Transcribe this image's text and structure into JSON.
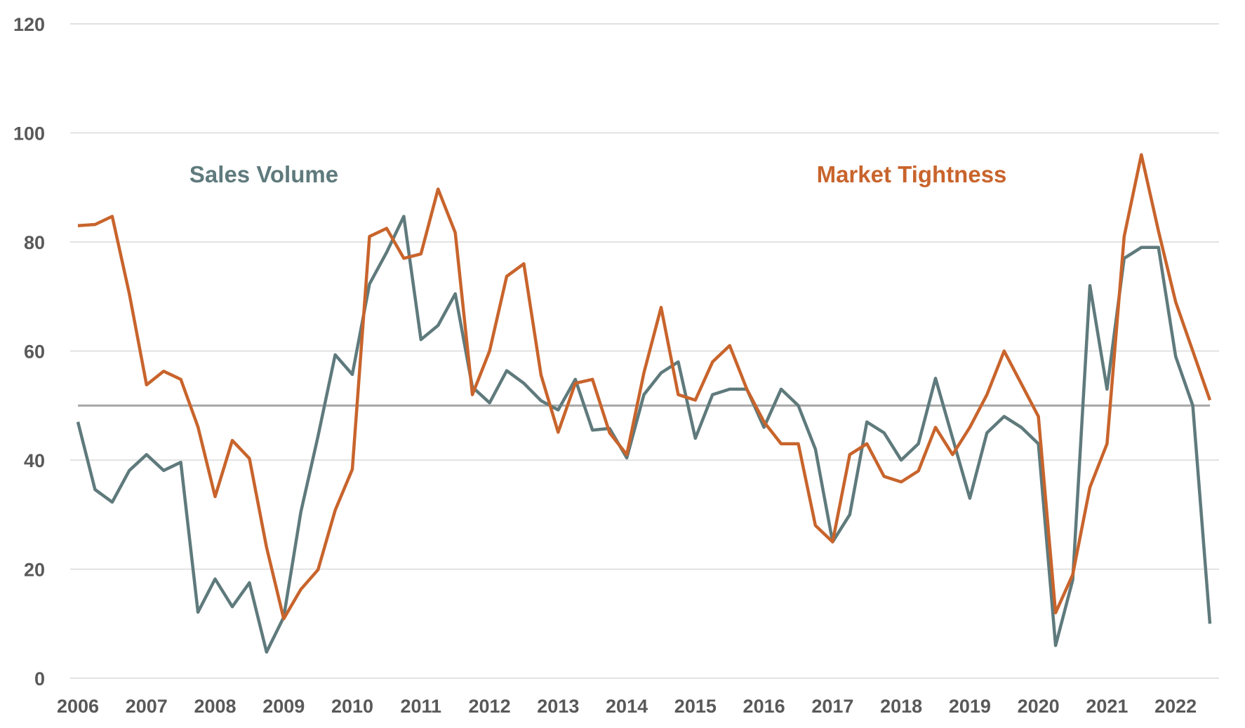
{
  "chart_data": {
    "type": "line",
    "title": "",
    "xlabel": "",
    "ylabel": "",
    "ylim": [
      0,
      120
    ],
    "yticks": [
      0,
      20,
      40,
      60,
      80,
      100,
      120
    ],
    "xticks": [
      "2006",
      "2007",
      "2008",
      "2009",
      "2010",
      "2011",
      "2012",
      "2013",
      "2014",
      "2015",
      "2016",
      "2017",
      "2018",
      "2019",
      "2020",
      "2021",
      "2022"
    ],
    "x_frequency": "quarterly",
    "x_start": "2006 Q1",
    "x_end": "2022 Q3",
    "grid": "horizontal",
    "reference_line": {
      "value": 50,
      "color": "#a6a6a6"
    },
    "series": [
      {
        "name": "Sales Volume",
        "color": "#5f7a7c",
        "values": [
          47,
          34.6,
          32.3,
          38.1,
          41,
          38.1,
          39.6,
          12.1,
          18.2,
          13.1,
          17.5,
          4.8,
          11.2,
          30.5,
          44.4,
          59.3,
          55.7,
          72.3,
          78.1,
          84.7,
          62.1,
          64.7,
          70.5,
          53.4,
          50.5,
          56.4,
          54.1,
          50.9,
          49.2,
          54.8,
          45.5,
          45.8,
          40.4,
          52,
          56,
          58,
          44,
          52,
          53,
          53,
          46,
          53,
          50,
          42,
          25,
          30,
          47,
          45,
          40,
          43,
          55,
          44,
          33,
          45,
          48,
          46,
          43,
          6,
          18,
          72,
          53,
          77,
          79,
          79,
          59,
          50,
          10
        ]
      },
      {
        "name": "Market Tightness",
        "color": "#c8642c",
        "values": [
          83,
          83.2,
          84.7,
          70.5,
          53.8,
          56.3,
          54.8,
          46.1,
          33.3,
          43.6,
          40.3,
          24,
          10.9,
          16.3,
          19.9,
          30.8,
          38.3,
          81,
          82.5,
          77,
          77.8,
          89.7,
          81.7,
          52,
          60,
          73.7,
          76,
          55.6,
          45.1,
          54.1,
          54.8,
          45,
          41,
          56,
          68,
          52,
          51,
          58,
          61,
          53,
          47,
          43,
          43,
          28,
          25,
          41,
          43,
          37,
          36,
          38,
          46,
          41,
          46,
          52,
          60,
          54,
          48,
          12,
          19,
          35,
          43,
          81,
          96,
          82,
          69,
          60,
          51
        ]
      }
    ]
  }
}
